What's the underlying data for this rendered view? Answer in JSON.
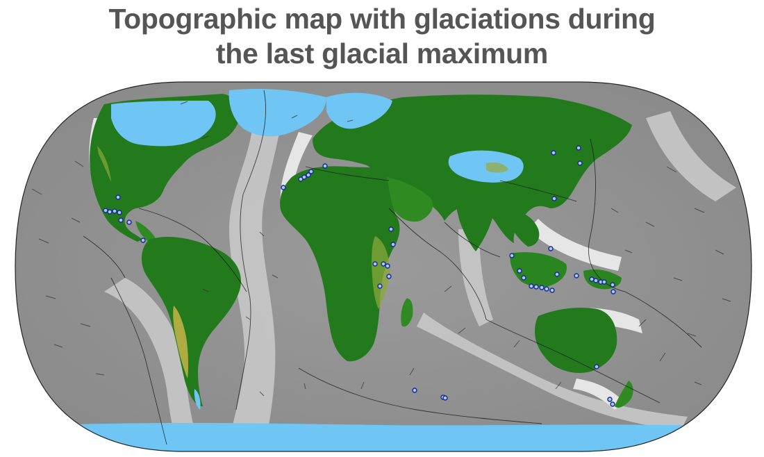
{
  "title": {
    "line1": "Topographic map with glaciations during",
    "line2": "the last glacial maximum"
  },
  "colors": {
    "ocean_deep": "#7a7a7a",
    "ocean_mid": "#a8a8a8",
    "ocean_shelf": "#dcdcdc",
    "land_low": "#1f7a1a",
    "land_mid": "#6a9a2a",
    "land_high": "#c8b44a",
    "ice": "#6fc6f5",
    "site_marker": "#1a2a8a",
    "plate_boundary": "#111111",
    "title_text": "#555555"
  },
  "map": {
    "projection": "Robinson",
    "layers": [
      "bathymetry-topography",
      "glacial-ice-sheets",
      "plate-boundaries",
      "plate-motion-vectors",
      "glaciation-sites"
    ]
  }
}
